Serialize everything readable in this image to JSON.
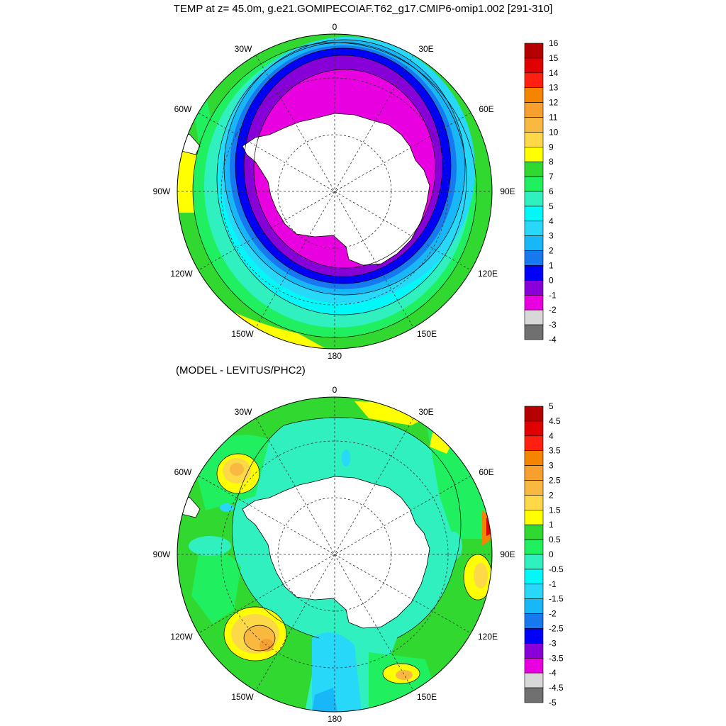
{
  "title": "TEMP at z=  45.0m, g.e21.GOMIPECOIAF.T62_g17.CMIP6-omip1.002 [291-310]",
  "panels": [
    {
      "subtitle": "",
      "lon_labels": [
        "0",
        "30E",
        "60E",
        "90E",
        "120E",
        "150E",
        "180",
        "150W",
        "120W",
        "90W",
        "60W",
        "30W"
      ],
      "colorbar": {
        "labels": [
          "16",
          "15",
          "14",
          "13",
          "12",
          "11",
          "10",
          "9",
          "8",
          "7",
          "6",
          "5",
          "4",
          "3",
          "2",
          "1",
          "0",
          "-1",
          "-2",
          "-3",
          "-4"
        ],
        "colors": [
          "#b40000",
          "#e00000",
          "#ff2010",
          "#f58400",
          "#f7a030",
          "#f9b840",
          "#fdd948",
          "#ffff00",
          "#30d830",
          "#20f060",
          "#30f0c0",
          "#00f8f8",
          "#28d8f8",
          "#18b8f8",
          "#1878f0",
          "#0000f8",
          "#8800d8",
          "#e800e0",
          "#d8d8d8",
          "#707070"
        ]
      }
    },
    {
      "subtitle": "(MODEL - LEVITUS/PHC2)",
      "lon_labels": [
        "0",
        "30E",
        "60E",
        "90E",
        "120E",
        "150E",
        "180",
        "150W",
        "120W",
        "90W",
        "60W",
        "30W"
      ],
      "colorbar": {
        "labels": [
          "5",
          "4.5",
          "4",
          "3.5",
          "3",
          "2.5",
          "2",
          "1.5",
          "1",
          "0.5",
          "0",
          "-0.5",
          "-1",
          "-1.5",
          "-2",
          "-2.5",
          "-3",
          "-3.5",
          "-4",
          "-4.5",
          "-5"
        ],
        "colors": [
          "#b40000",
          "#e00000",
          "#ff2010",
          "#f58400",
          "#f7a030",
          "#f9b840",
          "#fdd948",
          "#ffff00",
          "#30d830",
          "#20f060",
          "#30f0c0",
          "#00f8f8",
          "#28d8f8",
          "#18b8f8",
          "#1878f0",
          "#0000f8",
          "#8800d8",
          "#e800e0",
          "#d8d8d8",
          "#707070"
        ]
      }
    }
  ]
}
